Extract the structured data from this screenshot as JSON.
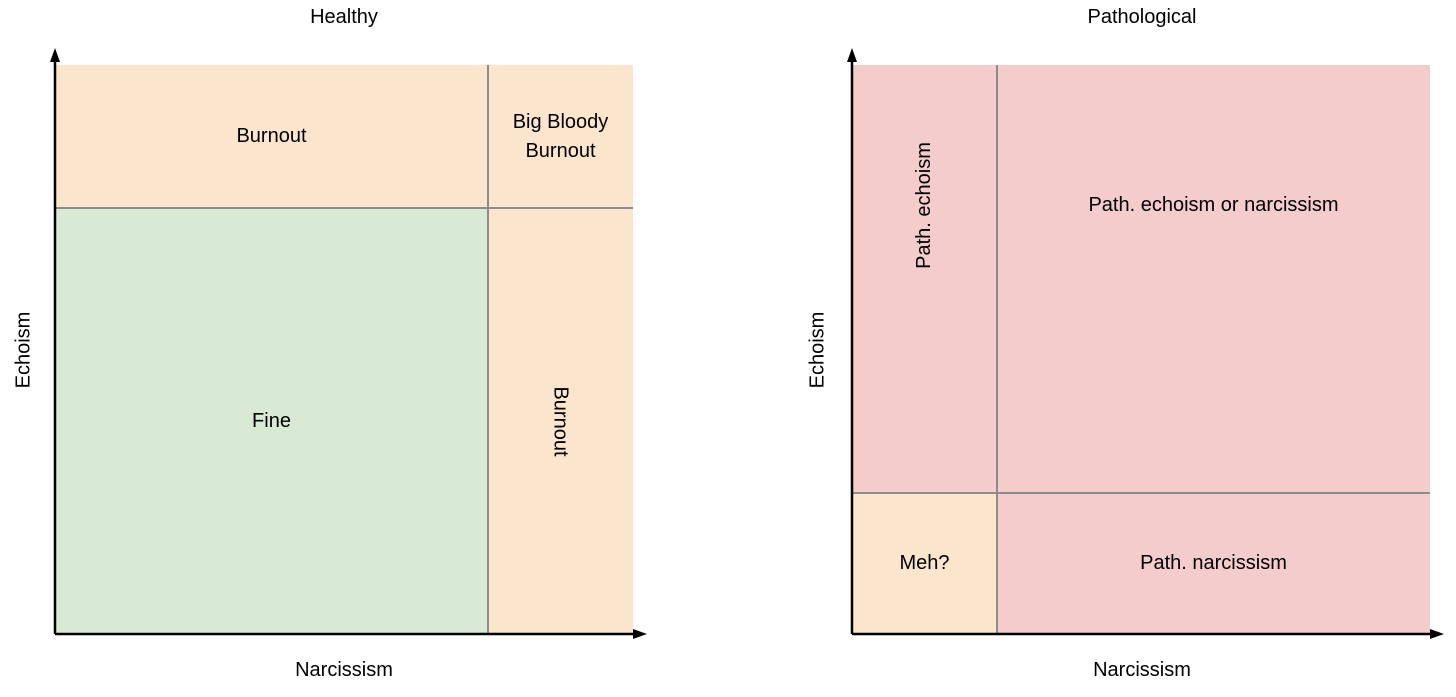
{
  "diagrams": [
    {
      "title": "Healthy",
      "x_axis_label": "Narcissism",
      "y_axis_label": "Echoism",
      "regions": [
        {
          "label": "Burnout",
          "color": "#fbe5cd"
        },
        {
          "label": "Big Bloody\nBurnout",
          "color": "#fbe5cd"
        },
        {
          "label": "Fine",
          "color": "#d9ead4"
        },
        {
          "label": "Burnout",
          "color": "#fbe5cd"
        }
      ]
    },
    {
      "title": "Pathological",
      "x_axis_label": "Narcissism",
      "y_axis_label": "Echoism",
      "regions": [
        {
          "label": "Path. echoism",
          "color": "#f4cccc"
        },
        {
          "label": "Path. echoism or narcissism",
          "color": "#f4cccc"
        },
        {
          "label": "Meh?",
          "color": "#fbe5cd"
        },
        {
          "label": "Path. narcissism",
          "color": "#f4cccc"
        }
      ]
    }
  ]
}
